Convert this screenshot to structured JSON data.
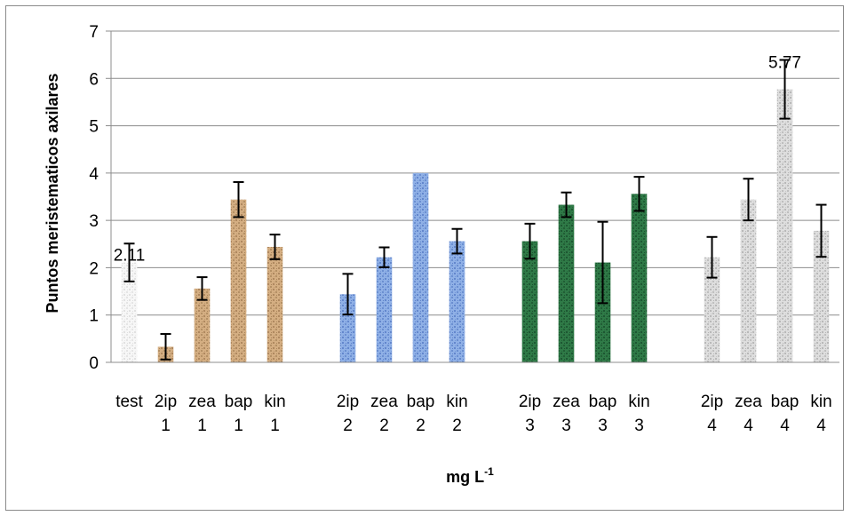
{
  "chart_data": {
    "type": "bar",
    "ylabel": "Puntos meristematicos axilares",
    "xlabel": {
      "base": "mg L",
      "superscript": "-1"
    },
    "ylim": [
      0,
      7
    ],
    "yticks": [
      0,
      1,
      2,
      3,
      4,
      5,
      6,
      7
    ],
    "grid": "horizontal",
    "legend": "none",
    "groups": [
      {
        "bars": [
          {
            "line1": "test",
            "line2": "",
            "value": 2.11,
            "err": 0.4,
            "texture": "white",
            "label": "2.11"
          },
          {
            "line1": "2ip",
            "line2": "1",
            "value": 0.33,
            "err": 0.27,
            "texture": "brown"
          },
          {
            "line1": "zea",
            "line2": "1",
            "value": 1.56,
            "err": 0.24,
            "texture": "brown"
          },
          {
            "line1": "bap",
            "line2": "1",
            "value": 3.44,
            "err": 0.37,
            "texture": "brown"
          },
          {
            "line1": "kin",
            "line2": "1",
            "value": 2.44,
            "err": 0.26,
            "texture": "brown"
          }
        ]
      },
      {
        "bars": [
          {
            "line1": "2ip",
            "line2": "2",
            "value": 1.44,
            "err": 0.43,
            "texture": "blue"
          },
          {
            "line1": "zea",
            "line2": "2",
            "value": 2.22,
            "err": 0.21,
            "texture": "blue"
          },
          {
            "line1": "bap",
            "line2": "2",
            "value": 4.0,
            "err": 0.0,
            "texture": "blue"
          },
          {
            "line1": "kin",
            "line2": "2",
            "value": 2.56,
            "err": 0.26,
            "texture": "blue"
          }
        ]
      },
      {
        "bars": [
          {
            "line1": "2ip",
            "line2": "3",
            "value": 2.56,
            "err": 0.37,
            "texture": "green"
          },
          {
            "line1": "zea",
            "line2": "3",
            "value": 3.33,
            "err": 0.26,
            "texture": "green"
          },
          {
            "line1": "bap",
            "line2": "3",
            "value": 2.11,
            "err": 0.86,
            "texture": "green"
          },
          {
            "line1": "kin",
            "line2": "3",
            "value": 3.56,
            "err": 0.36,
            "texture": "green"
          }
        ]
      },
      {
        "bars": [
          {
            "line1": "2ip",
            "line2": "4",
            "value": 2.22,
            "err": 0.43,
            "texture": "gray"
          },
          {
            "line1": "zea",
            "line2": "4",
            "value": 3.44,
            "err": 0.44,
            "texture": "gray"
          },
          {
            "line1": "bap",
            "line2": "4",
            "value": 5.77,
            "err": 0.62,
            "texture": "gray",
            "label": "5.77"
          },
          {
            "line1": "kin",
            "line2": "4",
            "value": 2.78,
            "err": 0.55,
            "texture": "gray"
          }
        ]
      }
    ],
    "colors": {
      "white": [
        "#f7f7f7",
        "#cfcfcf"
      ],
      "brown": [
        "#d4ae82",
        "#8f6a42"
      ],
      "blue": [
        "#8fb0e6",
        "#3f66b8"
      ],
      "green": [
        "#2f7a47",
        "#0f3b20"
      ],
      "gray": [
        "#dedede",
        "#9a9a9a"
      ],
      "grid": "#8c8c8c",
      "error": "#000000"
    }
  }
}
